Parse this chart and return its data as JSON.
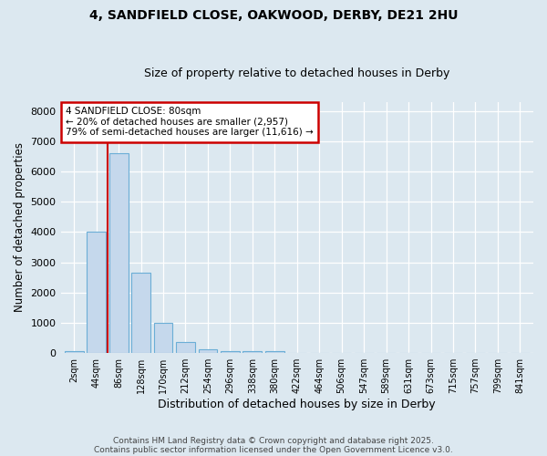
{
  "title1": "4, SANDFIELD CLOSE, OAKWOOD, DERBY, DE21 2HU",
  "title2": "Size of property relative to detached houses in Derby",
  "xlabel": "Distribution of detached houses by size in Derby",
  "ylabel": "Number of detached properties",
  "bar_labels": [
    "2sqm",
    "44sqm",
    "86sqm",
    "128sqm",
    "170sqm",
    "212sqm",
    "254sqm",
    "296sqm",
    "338sqm",
    "380sqm",
    "422sqm",
    "464sqm",
    "506sqm",
    "547sqm",
    "589sqm",
    "631sqm",
    "673sqm",
    "715sqm",
    "757sqm",
    "799sqm",
    "841sqm"
  ],
  "bar_heights": [
    50,
    4000,
    6600,
    2650,
    1000,
    350,
    130,
    70,
    50,
    50,
    0,
    0,
    0,
    0,
    0,
    0,
    0,
    0,
    0,
    0,
    0
  ],
  "bar_color": "#c5d8ec",
  "bar_edge_color": "#6baed6",
  "red_line_index": 1.5,
  "annotation_line1": "4 SANDFIELD CLOSE: 80sqm",
  "annotation_line2": "← 20% of detached houses are smaller (2,957)",
  "annotation_line3": "79% of semi-detached houses are larger (11,616) →",
  "annotation_box_color": "#ffffff",
  "annotation_box_edge_color": "#cc0000",
  "red_line_color": "#cc0000",
  "ylim": [
    0,
    8300
  ],
  "yticks": [
    0,
    1000,
    2000,
    3000,
    4000,
    5000,
    6000,
    7000,
    8000
  ],
  "footer1": "Contains HM Land Registry data © Crown copyright and database right 2025.",
  "footer2": "Contains public sector information licensed under the Open Government Licence v3.0.",
  "bg_color": "#dce8f0",
  "plot_bg_color": "#dce8f0",
  "grid_color": "#ffffff"
}
